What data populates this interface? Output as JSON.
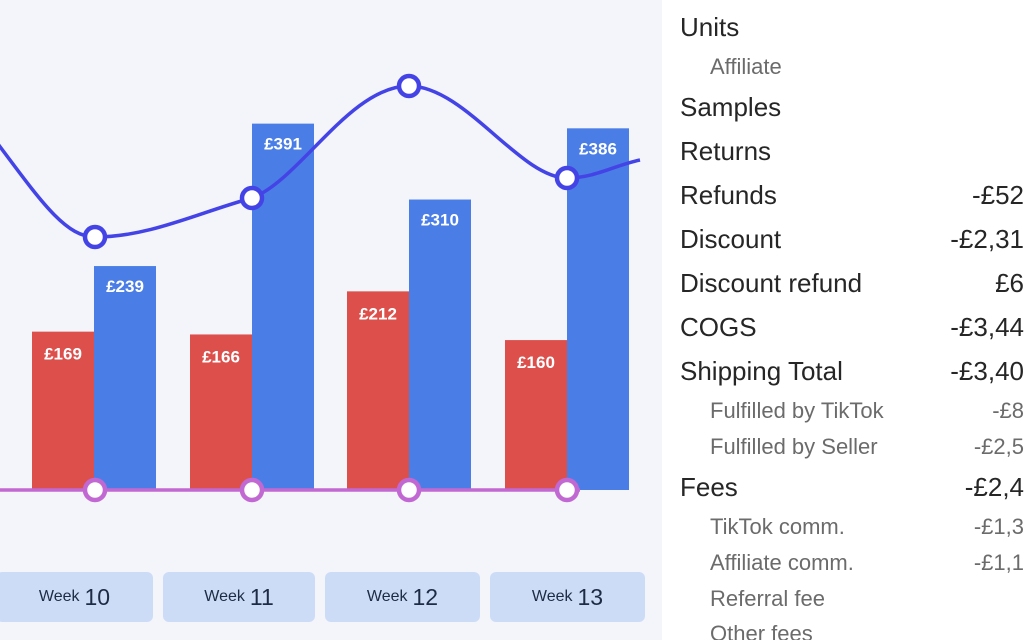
{
  "chart_data": {
    "type": "bar",
    "categories": [
      "Week 10",
      "Week 11",
      "Week 12",
      "Week 13"
    ],
    "series": [
      {
        "type": "bar",
        "color": "#dc4f4b",
        "values": [
          169,
          166,
          212,
          160
        ],
        "labels": [
          "£169",
          "£166",
          "£212",
          "£160"
        ]
      },
      {
        "type": "bar",
        "color": "#4a7ee6",
        "values": [
          239,
          391,
          310,
          386
        ],
        "labels": [
          "£239",
          "£391",
          "£310",
          "£386"
        ]
      },
      {
        "type": "line",
        "color": "#4444e6",
        "marker": "circle"
      },
      {
        "type": "line",
        "color": "#c168d2",
        "marker": "circle"
      }
    ],
    "grid": false
  },
  "tabs": [
    {
      "prefix": "Week",
      "number": "10"
    },
    {
      "prefix": "Week",
      "number": "11"
    },
    {
      "prefix": "Week",
      "number": "12"
    },
    {
      "prefix": "Week",
      "number": "13"
    }
  ],
  "summary": [
    {
      "label": "Units",
      "value": "",
      "level": "main"
    },
    {
      "label": "Affiliate",
      "value": "",
      "level": "sub"
    },
    {
      "label": "Samples",
      "value": "",
      "level": "main"
    },
    {
      "label": "Returns",
      "value": "",
      "level": "main"
    },
    {
      "label": "Refunds",
      "value": "-£52",
      "level": "main"
    },
    {
      "label": "Discount",
      "value": "-£2,31",
      "level": "main"
    },
    {
      "label": "Discount refund",
      "value": "£6",
      "level": "main"
    },
    {
      "label": "COGS",
      "value": "-£3,44",
      "level": "main"
    },
    {
      "label": "Shipping Total",
      "value": "-£3,40",
      "level": "main"
    },
    {
      "label": "Fulfilled by TikTok",
      "value": "-£8",
      "level": "sub"
    },
    {
      "label": "Fulfilled by Seller",
      "value": "-£2,5",
      "level": "sub"
    },
    {
      "label": "Fees",
      "value": "-£2,4",
      "level": "main"
    },
    {
      "label": "TikTok comm.",
      "value": "-£1,3",
      "level": "sub"
    },
    {
      "label": "Affiliate comm.",
      "value": "-£1,1",
      "level": "sub"
    },
    {
      "label": "Referral fee",
      "value": "",
      "level": "sub"
    },
    {
      "label": "Other fees",
      "value": "",
      "level": "sub"
    }
  ]
}
